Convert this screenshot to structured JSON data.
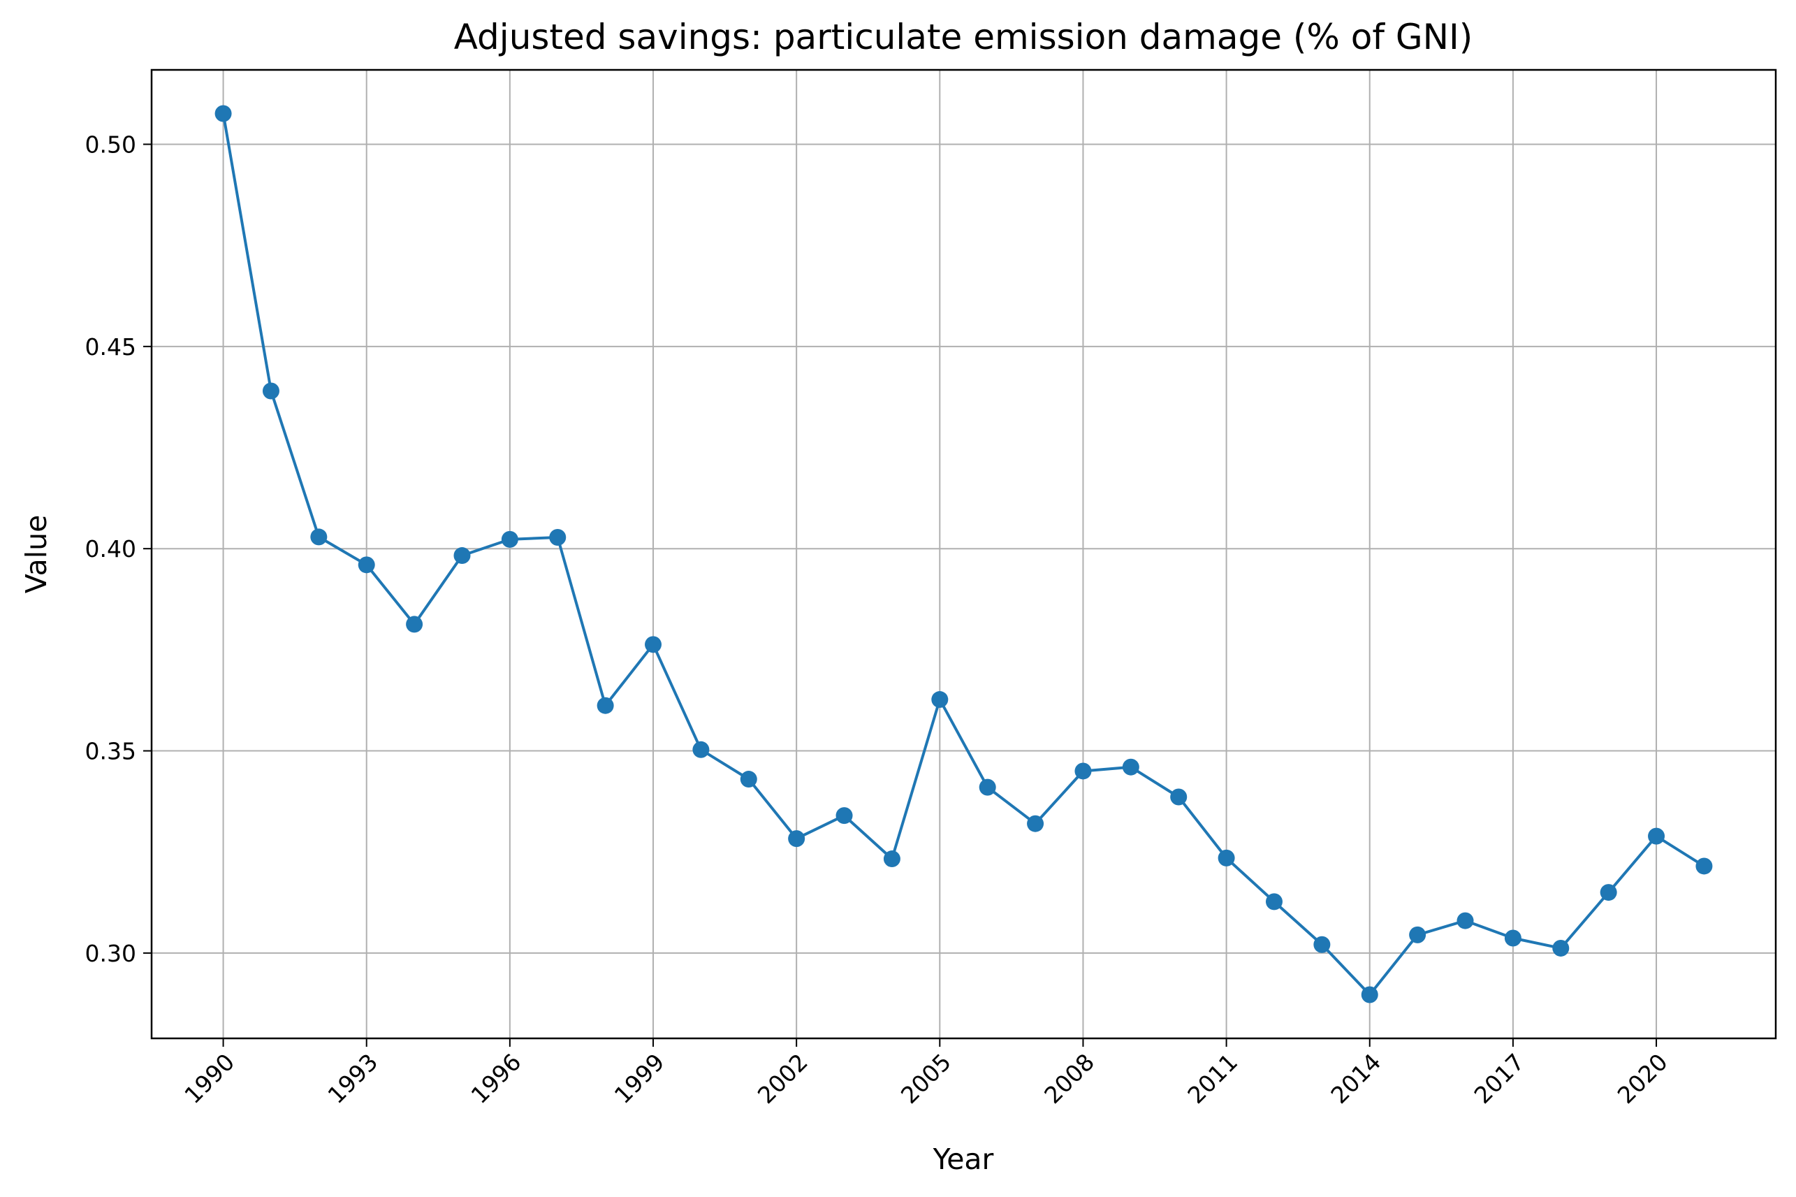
{
  "chart_data": {
    "type": "line",
    "title": "Adjusted savings: particulate emission damage (% of GNI)",
    "xlabel": "Year",
    "ylabel": "Value",
    "grid": true,
    "xlim": [
      1988.5,
      2022.5
    ],
    "ylim": [
      0.2789,
      0.5184
    ],
    "x_ticks": [
      "1990",
      "1993",
      "1996",
      "1999",
      "2002",
      "2005",
      "2008",
      "2011",
      "2014",
      "2017",
      "2020"
    ],
    "y_ticks": [
      "0.30",
      "0.35",
      "0.40",
      "0.45",
      "0.50"
    ],
    "series": [
      {
        "color": "#1f77b4",
        "marker": "circle",
        "x": [
          1990,
          1991,
          1992,
          1993,
          1994,
          1995,
          1996,
          1997,
          1998,
          1999,
          2000,
          2001,
          2002,
          2003,
          2004,
          2005,
          2006,
          2007,
          2008,
          2009,
          2010,
          2011,
          2012,
          2013,
          2014,
          2015,
          2016,
          2017,
          2018,
          2019,
          2020,
          2021
        ],
        "y": [
          0.5076,
          0.439,
          0.4029,
          0.396,
          0.3813,
          0.3983,
          0.4023,
          0.4028,
          0.3612,
          0.3763,
          0.3503,
          0.343,
          0.3283,
          0.334,
          0.3233,
          0.3627,
          0.341,
          0.332,
          0.345,
          0.346,
          0.3386,
          0.3235,
          0.3127,
          0.3021,
          0.2897,
          0.3045,
          0.308,
          0.3037,
          0.3012,
          0.315,
          0.3289,
          0.3215
        ]
      }
    ]
  }
}
